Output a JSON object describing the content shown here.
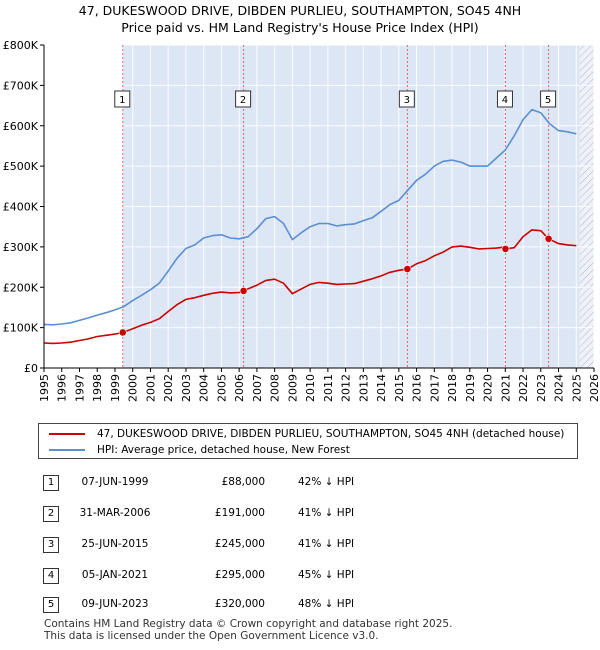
{
  "title": {
    "line1": "47, DUKESWOOD DRIVE, DIBDEN PURLIEU, SOUTHAMPTON, SO45 4NH",
    "line2": "Price paid vs. HM Land Registry's House Price Index (HPI)"
  },
  "colors": {
    "property": "#cc0000",
    "hpi": "#5b8fd1",
    "shade": "#dde6f5",
    "hatch": "#aab8d0",
    "marker_line": "#e06666"
  },
  "chart_data": {
    "type": "line",
    "x_range": [
      1995,
      2026
    ],
    "ylim": [
      0,
      800000
    ],
    "y_ticks": [
      {
        "value": 0,
        "label": "£0"
      },
      {
        "value": 100000,
        "label": "£100K"
      },
      {
        "value": 200000,
        "label": "£200K"
      },
      {
        "value": 300000,
        "label": "£300K"
      },
      {
        "value": 400000,
        "label": "£400K"
      },
      {
        "value": 500000,
        "label": "£500K"
      },
      {
        "value": 600000,
        "label": "£600K"
      },
      {
        "value": 700000,
        "label": "£700K"
      },
      {
        "value": 800000,
        "label": "£800K"
      }
    ],
    "x_ticks": [
      "1995",
      "1996",
      "1997",
      "1998",
      "1999",
      "2000",
      "2001",
      "2002",
      "2003",
      "2004",
      "2005",
      "2006",
      "2007",
      "2008",
      "2009",
      "2010",
      "2011",
      "2012",
      "2013",
      "2014",
      "2015",
      "2016",
      "2017",
      "2018",
      "2019",
      "2020",
      "2021",
      "2022",
      "2023",
      "2024",
      "2025",
      "2026"
    ],
    "shaded_range": [
      1999.44,
      2025.2
    ],
    "hatched_range": [
      2025.2,
      2026
    ],
    "series": [
      {
        "name": "hpi",
        "x": [
          1995,
          1995.5,
          1996,
          1996.5,
          1997,
          1997.5,
          1998,
          1998.5,
          1999,
          1999.5,
          2000,
          2000.5,
          2001,
          2001.5,
          2002,
          2002.5,
          2003,
          2003.5,
          2004,
          2004.5,
          2005,
          2005.5,
          2006,
          2006.5,
          2007,
          2007.5,
          2008,
          2008.5,
          2009,
          2009.5,
          2010,
          2010.5,
          2011,
          2011.5,
          2012,
          2012.5,
          2013,
          2013.5,
          2014,
          2014.5,
          2015,
          2015.5,
          2016,
          2016.5,
          2017,
          2017.5,
          2018,
          2018.5,
          2019,
          2019.5,
          2020,
          2020.5,
          2021,
          2021.5,
          2022,
          2022.5,
          2023,
          2023.5,
          2024,
          2024.5,
          2025
        ],
        "values": [
          108000,
          107000,
          109000,
          112000,
          118000,
          124000,
          131000,
          137000,
          144000,
          152000,
          167000,
          180000,
          194000,
          210000,
          240000,
          272000,
          296000,
          305000,
          322000,
          328000,
          330000,
          322000,
          320000,
          325000,
          345000,
          370000,
          375000,
          358000,
          318000,
          335000,
          350000,
          358000,
          358000,
          352000,
          355000,
          357000,
          365000,
          372000,
          388000,
          405000,
          415000,
          440000,
          465000,
          480000,
          500000,
          512000,
          515000,
          510000,
          500000,
          500000,
          500000,
          520000,
          540000,
          575000,
          615000,
          640000,
          632000,
          605000,
          588000,
          585000,
          580000
        ]
      },
      {
        "name": "property",
        "x": [
          1995,
          1995.5,
          1996,
          1996.5,
          1997,
          1997.5,
          1998,
          1998.5,
          1999,
          1999.44,
          2000,
          2000.5,
          2001,
          2001.5,
          2002,
          2002.5,
          2003,
          2003.5,
          2004,
          2004.5,
          2005,
          2005.5,
          2006,
          2006.25,
          2006.5,
          2007,
          2007.5,
          2008,
          2008.5,
          2009,
          2009.5,
          2010,
          2010.5,
          2011,
          2011.5,
          2012,
          2012.5,
          2013,
          2013.5,
          2014,
          2014.5,
          2015,
          2015.48,
          2016,
          2016.5,
          2017,
          2017.5,
          2018,
          2018.5,
          2019,
          2019.5,
          2020,
          2020.5,
          2021,
          2021.01,
          2021.5,
          2022,
          2022.5,
          2023,
          2023.44,
          2024,
          2024.5,
          2025
        ],
        "values": [
          62000,
          61000,
          62000,
          64000,
          68000,
          72000,
          78000,
          81000,
          84000,
          88000,
          97000,
          106000,
          113000,
          122000,
          140000,
          157000,
          170000,
          174000,
          180000,
          185000,
          188000,
          186000,
          187000,
          191000,
          196000,
          205000,
          217000,
          220000,
          210000,
          184000,
          196000,
          207000,
          212000,
          210000,
          207000,
          208000,
          209000,
          215000,
          221000,
          228000,
          237000,
          242000,
          245000,
          258000,
          266000,
          278000,
          287000,
          300000,
          302000,
          299000,
          295000,
          296000,
          297000,
          300000,
          295000,
          298000,
          325000,
          342000,
          340000,
          320000,
          308000,
          305000,
          303000
        ]
      }
    ],
    "sales": [
      {
        "label": "1",
        "year": 1999.44,
        "price": 88000
      },
      {
        "label": "2",
        "year": 2006.25,
        "price": 191000
      },
      {
        "label": "3",
        "year": 2015.48,
        "price": 245000
      },
      {
        "label": "4",
        "year": 2021.01,
        "price": 295000
      },
      {
        "label": "5",
        "year": 2023.44,
        "price": 320000
      }
    ]
  },
  "legend": {
    "property_label": "47, DUKESWOOD DRIVE, DIBDEN PURLIEU, SOUTHAMPTON, SO45 4NH (detached house)",
    "hpi_label": "HPI: Average price, detached house, New Forest"
  },
  "table": [
    {
      "num": "1",
      "date": "07-JUN-1999",
      "price": "£88,000",
      "hpi": "42% ↓ HPI"
    },
    {
      "num": "2",
      "date": "31-MAR-2006",
      "price": "£191,000",
      "hpi": "41% ↓ HPI"
    },
    {
      "num": "3",
      "date": "25-JUN-2015",
      "price": "£245,000",
      "hpi": "41% ↓ HPI"
    },
    {
      "num": "4",
      "date": "05-JAN-2021",
      "price": "£295,000",
      "hpi": "45% ↓ HPI"
    },
    {
      "num": "5",
      "date": "09-JUN-2023",
      "price": "£320,000",
      "hpi": "48% ↓ HPI"
    }
  ],
  "footer": {
    "line1": "Contains HM Land Registry data © Crown copyright and database right 2025.",
    "line2": "This data is licensed under the Open Government Licence v3.0."
  }
}
